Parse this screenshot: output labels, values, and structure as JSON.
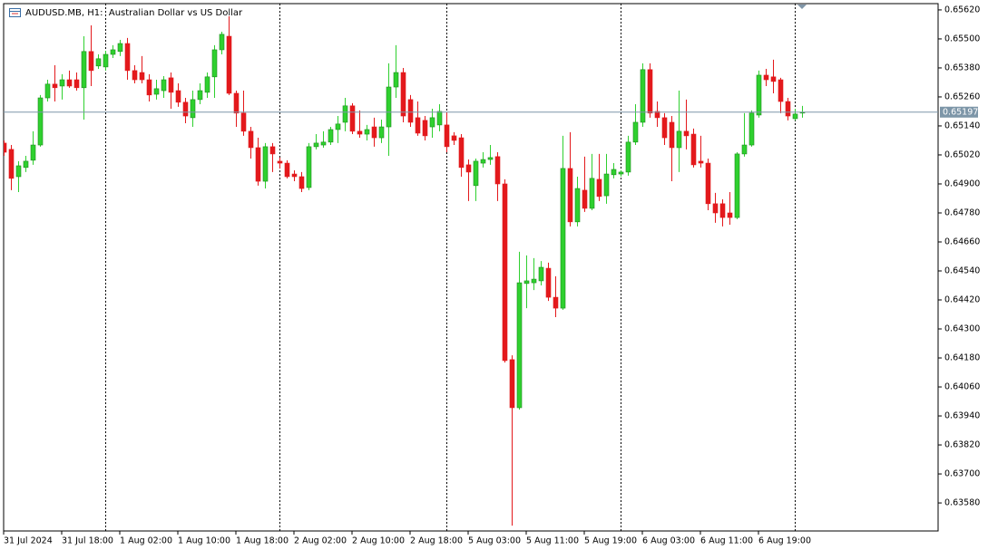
{
  "chart_data": {
    "type": "candlestick",
    "title": "AUDUSD.MB, H1:  Australian Dollar vs US Dollar",
    "categories": [
      "31 Jul 2024",
      null,
      null,
      null,
      null,
      null,
      null,
      null,
      "31 Jul 18:00",
      null,
      null,
      null,
      null,
      null,
      null,
      null,
      "1 Aug 02:00",
      null,
      null,
      null,
      null,
      null,
      null,
      null,
      "1 Aug 10:00",
      null,
      null,
      null,
      null,
      null,
      null,
      null,
      "1 Aug 18:00",
      null,
      null,
      null,
      null,
      null,
      null,
      null,
      "2 Aug 02:00",
      null,
      null,
      null,
      null,
      null,
      null,
      null,
      "2 Aug 10:00",
      null,
      null,
      null,
      null,
      null,
      null,
      null,
      "2 Aug 18:00",
      null,
      null,
      null,
      null,
      null,
      null,
      null,
      "5 Aug 03:00",
      null,
      null,
      null,
      null,
      null,
      null,
      null,
      "5 Aug 11:00",
      null,
      null,
      null,
      null,
      null,
      null,
      null,
      "5 Aug 19:00",
      null,
      null,
      null,
      null,
      null,
      null,
      null,
      "6 Aug 03:00",
      null,
      null,
      null,
      null,
      null,
      null,
      null,
      "6 Aug 11:00",
      null,
      null,
      null,
      null,
      null,
      null,
      null,
      "6 Aug 19:00",
      null,
      null,
      null,
      null,
      null,
      null
    ],
    "open": [
      0.65069,
      0.65043,
      0.6493,
      0.64968,
      0.64998,
      0.65061,
      0.65256,
      0.65313,
      0.65305,
      0.65331,
      0.65331,
      0.65298,
      0.65448,
      0.65388,
      0.65384,
      0.65436,
      0.65448,
      0.65481,
      0.65369,
      0.65361,
      0.65331,
      0.65271,
      0.65286,
      0.65339,
      0.65286,
      0.65238,
      0.65174,
      0.65249,
      0.65279,
      0.65343,
      0.65455,
      0.65511,
      0.65275,
      0.65193,
      0.65118,
      0.6505,
      0.64911,
      0.65054,
      0.64994,
      0.64986,
      0.64941,
      0.6493,
      0.64885,
      0.65054,
      0.65061,
      0.65073,
      0.65125,
      0.65155,
      0.65223,
      0.65118,
      0.65106,
      0.65136,
      0.65091,
      0.65136,
      0.65301,
      0.65361,
      0.65249,
      0.65174,
      0.65163,
      0.65136,
      0.65144,
      0.65144,
      0.65099,
      0.65091,
      0.64979,
      0.64893,
      0.64986,
      0.65001,
      0.65013,
      0.649,
      0.64173,
      0.63974,
      0.64488,
      0.64491,
      0.64499,
      0.64551,
      0.64431,
      0.64386,
      0.64964,
      0.64743,
      0.64874,
      0.64799,
      0.64919,
      0.64851,
      0.64938,
      0.64941,
      0.64949,
      0.65073,
      0.65155,
      0.65373,
      0.652,
      0.65174,
      0.65155,
      0.6505,
      0.65118,
      0.65106,
      0.64994,
      0.64986,
      0.64818,
      0.64818,
      0.6478,
      0.64761,
      0.65024,
      0.65061,
      0.65185,
      0.6535,
      0.65343,
      0.65331,
      0.65241,
      0.6517,
      0.65193
    ],
    "high": [
      0.6508,
      0.65061,
      0.64994,
      0.65016,
      0.65118,
      0.65268,
      0.65331,
      0.65391,
      0.65354,
      0.65369,
      0.65361,
      0.65511,
      0.65556,
      0.65436,
      0.65451,
      0.65474,
      0.65496,
      0.65504,
      0.65391,
      0.65429,
      0.65354,
      0.65331,
      0.65346,
      0.65361,
      0.65316,
      0.65256,
      0.65286,
      0.65316,
      0.65361,
      0.65474,
      0.6553,
      0.65594,
      0.65286,
      0.65286,
      0.65136,
      0.65091,
      0.65069,
      0.65069,
      0.65009,
      0.64998,
      0.64956,
      0.64949,
      0.65069,
      0.65106,
      0.65118,
      0.65136,
      0.65181,
      0.65256,
      0.65234,
      0.65204,
      0.65144,
      0.65174,
      0.65166,
      0.65399,
      0.65474,
      0.6538,
      0.65268,
      0.65241,
      0.65181,
      0.65211,
      0.6523,
      0.65196,
      0.65114,
      0.65106,
      0.65001,
      0.65005,
      0.65031,
      0.65061,
      0.65031,
      0.64919,
      0.64191,
      0.64619,
      0.64604,
      0.64593,
      0.64581,
      0.64574,
      0.64518,
      0.65099,
      0.65114,
      0.6493,
      0.65013,
      0.65024,
      0.65024,
      0.65024,
      0.64986,
      0.64956,
      0.65099,
      0.6523,
      0.65399,
      0.65399,
      0.65241,
      0.65193,
      0.65181,
      0.65286,
      0.65249,
      0.65129,
      0.65099,
      0.65005,
      0.64863,
      0.64836,
      0.64866,
      0.65031,
      0.65193,
      0.65204,
      0.65369,
      0.65376,
      0.65414,
      0.65339,
      0.65256,
      0.65211,
      0.65223
    ],
    "low": [
      0.65016,
      0.64874,
      0.64866,
      0.64949,
      0.64979,
      0.65054,
      0.65241,
      0.65241,
      0.65249,
      0.65298,
      0.65286,
      0.65166,
      0.65305,
      0.65376,
      0.65369,
      0.65421,
      0.65429,
      0.65331,
      0.65316,
      0.65316,
      0.65241,
      0.65249,
      0.65256,
      0.65211,
      0.65219,
      0.65151,
      0.65136,
      0.6523,
      0.65256,
      0.65256,
      0.65436,
      0.65268,
      0.65136,
      0.65099,
      0.65005,
      0.64893,
      0.64881,
      0.64949,
      0.64964,
      0.64923,
      0.64911,
      0.64866,
      0.64874,
      0.65043,
      0.6505,
      0.65061,
      0.65069,
      0.65118,
      0.65106,
      0.65091,
      0.6508,
      0.65054,
      0.65069,
      0.65016,
      0.65256,
      0.65155,
      0.65136,
      0.65099,
      0.6508,
      0.65091,
      0.65118,
      0.65031,
      0.65061,
      0.6493,
      0.64829,
      0.64829,
      0.64968,
      0.64979,
      0.64829,
      0.64161,
      0.63486,
      0.63966,
      0.64386,
      0.64461,
      0.6448,
      0.64416,
      0.64349,
      0.64379,
      0.64724,
      0.64724,
      0.64784,
      0.64791,
      0.64829,
      0.64818,
      0.64923,
      0.6493,
      0.64934,
      0.65061,
      0.65136,
      0.65174,
      0.65136,
      0.65061,
      0.64911,
      0.64949,
      0.65043,
      0.64968,
      0.64968,
      0.64791,
      0.64739,
      0.64724,
      0.64731,
      0.64754,
      0.65013,
      0.65054,
      0.65174,
      0.65305,
      0.65275,
      0.65193,
      0.65163,
      0.65163,
      0.65174
    ],
    "close": [
      0.65031,
      0.64923,
      0.64975,
      0.64994,
      0.65061,
      0.65256,
      0.65313,
      0.65298,
      0.65331,
      0.65305,
      0.65298,
      0.65448,
      0.65369,
      0.65418,
      0.65436,
      0.65455,
      0.65481,
      0.65369,
      0.65331,
      0.65331,
      0.65268,
      0.65294,
      0.65331,
      0.65279,
      0.65238,
      0.65181,
      0.65249,
      0.65286,
      0.65343,
      0.65455,
      0.65519,
      0.65275,
      0.65193,
      0.65118,
      0.6505,
      0.64911,
      0.65054,
      0.65024,
      0.64986,
      0.6493,
      0.6493,
      0.64881,
      0.65054,
      0.65069,
      0.65073,
      0.65125,
      0.65148,
      0.65223,
      0.65118,
      0.65106,
      0.65125,
      0.65091,
      0.65136,
      0.65301,
      0.65361,
      0.65181,
      0.65155,
      0.6511,
      0.65099,
      0.65174,
      0.652,
      0.65054,
      0.6508,
      0.64968,
      0.64949,
      0.64994,
      0.65001,
      0.65009,
      0.649,
      0.64169,
      0.63974,
      0.64491,
      0.64499,
      0.64506,
      0.64555,
      0.64431,
      0.64386,
      0.64964,
      0.64743,
      0.64881,
      0.64799,
      0.64923,
      0.64848,
      0.64941,
      0.6496,
      0.64949,
      0.65073,
      0.65155,
      0.65373,
      0.65193,
      0.65174,
      0.65091,
      0.6505,
      0.65118,
      0.65099,
      0.64979,
      0.64986,
      0.64818,
      0.6478,
      0.64761,
      0.64761,
      0.65024,
      0.65061,
      0.65193,
      0.6535,
      0.65331,
      0.65324,
      0.65241,
      0.65181,
      0.65189,
      0.65197
    ],
    "up_color": "#2fd02f",
    "down_color": "#e3191c",
    "separators": [
      14,
      38,
      61,
      85,
      109
    ],
    "last_price": 0.65197,
    "ylim": [
      0.63464,
      0.65646
    ],
    "yticks": [
      {
        "value": 0.6562,
        "label": "0.65620"
      },
      {
        "value": 0.655,
        "label": "0.65500"
      },
      {
        "value": 0.6538,
        "label": "0.65380"
      },
      {
        "value": 0.6526,
        "label": "0.65260"
      },
      {
        "value": 0.6514,
        "label": "0.65140"
      },
      {
        "value": 0.6502,
        "label": "0.65020"
      },
      {
        "value": 0.649,
        "label": "0.64900"
      },
      {
        "value": 0.6478,
        "label": "0.64780"
      },
      {
        "value": 0.6466,
        "label": "0.64660"
      },
      {
        "value": 0.6454,
        "label": "0.64540"
      },
      {
        "value": 0.6442,
        "label": "0.64420"
      },
      {
        "value": 0.643,
        "label": "0.64300"
      },
      {
        "value": 0.6418,
        "label": "0.64180"
      },
      {
        "value": 0.6406,
        "label": "0.64060"
      },
      {
        "value": 0.6394,
        "label": "0.63940"
      },
      {
        "value": 0.6382,
        "label": "0.63820"
      },
      {
        "value": 0.637,
        "label": "0.63700"
      },
      {
        "value": 0.6358,
        "label": "0.63580"
      }
    ]
  }
}
